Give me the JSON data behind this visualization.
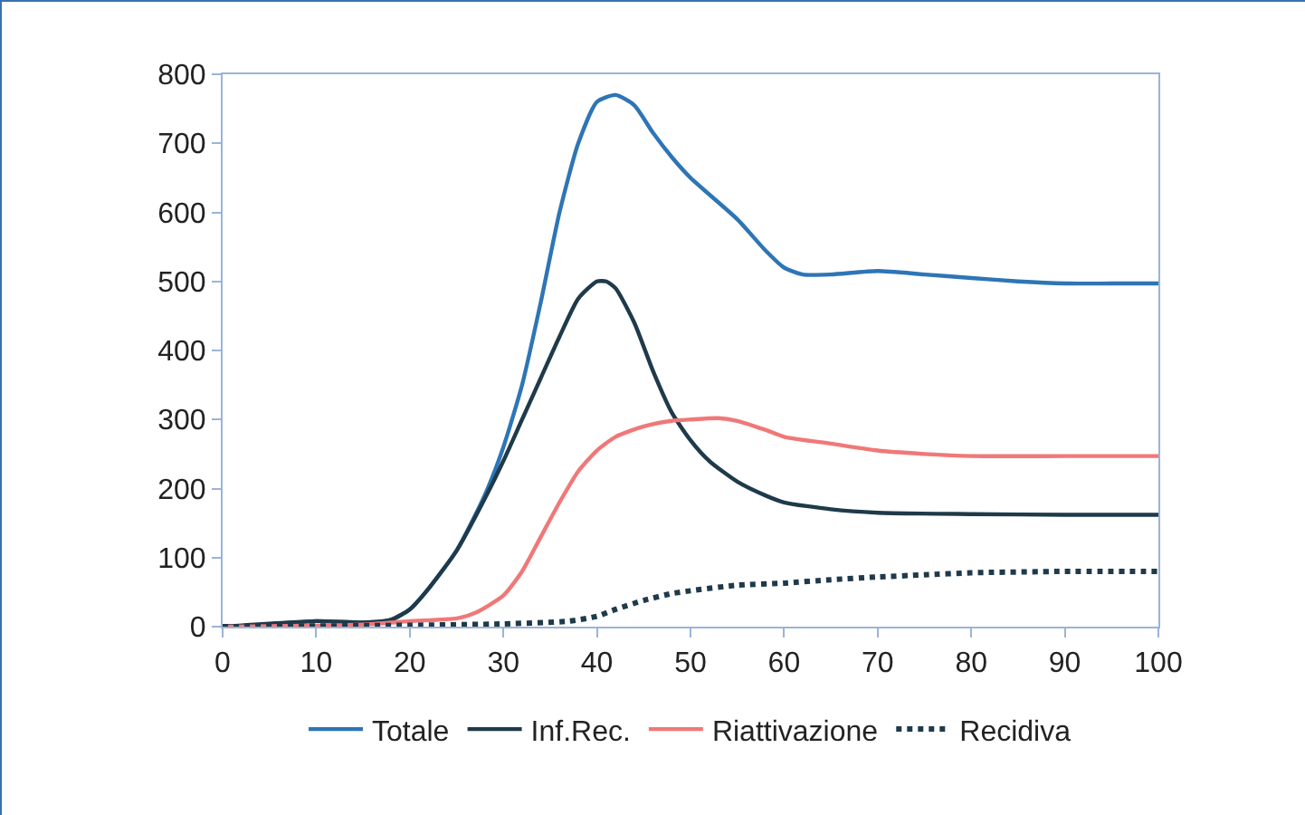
{
  "chart_data": {
    "type": "line",
    "xlim": [
      0,
      100
    ],
    "xticks": [
      0,
      10,
      20,
      30,
      40,
      50,
      60,
      70,
      80,
      90,
      100
    ],
    "ylim": [
      0,
      800
    ],
    "yticks": [
      0,
      100,
      200,
      300,
      400,
      500,
      600,
      700,
      800
    ],
    "grid": false,
    "legend": "bottom",
    "marker": "none",
    "series": [
      {
        "name": "Totale",
        "color": "#2e75b6",
        "line_style": "solid",
        "x": [
          0,
          5,
          10,
          15,
          18,
          20,
          22,
          25,
          28,
          30,
          32,
          34,
          36,
          38,
          40,
          42,
          44,
          46,
          48,
          50,
          55,
          58,
          60,
          62,
          65,
          70,
          75,
          80,
          85,
          90,
          95,
          100
        ],
        "values": [
          0,
          2,
          8,
          6,
          10,
          25,
          55,
          110,
          190,
          260,
          350,
          470,
          600,
          700,
          760,
          770,
          755,
          715,
          680,
          650,
          590,
          545,
          520,
          510,
          510,
          515,
          510,
          505,
          500,
          497,
          497,
          497
        ]
      },
      {
        "name": "Inf.Rec.",
        "color": "#1f3a4a",
        "line_style": "solid",
        "x": [
          0,
          10,
          15,
          18,
          20,
          22,
          25,
          28,
          30,
          32,
          34,
          36,
          38,
          40,
          41,
          42,
          44,
          46,
          48,
          50,
          52,
          55,
          58,
          60,
          65,
          70,
          80,
          90,
          100
        ],
        "values": [
          0,
          8,
          6,
          10,
          25,
          55,
          110,
          185,
          240,
          300,
          360,
          420,
          475,
          500,
          500,
          490,
          440,
          370,
          310,
          270,
          240,
          210,
          190,
          180,
          170,
          165,
          163,
          162,
          162
        ]
      },
      {
        "name": "Riattivazione",
        "color": "#f07878",
        "line_style": "solid",
        "x": [
          0,
          15,
          20,
          25,
          27,
          30,
          32,
          34,
          36,
          38,
          40,
          42,
          45,
          48,
          50,
          53,
          55,
          58,
          60,
          65,
          70,
          75,
          80,
          90,
          100
        ],
        "values": [
          0,
          3,
          8,
          12,
          20,
          45,
          80,
          130,
          180,
          225,
          255,
          275,
          290,
          298,
          300,
          302,
          298,
          285,
          275,
          265,
          255,
          250,
          247,
          247,
          247
        ]
      },
      {
        "name": "Recidiva",
        "color": "#1f3a4a",
        "line_style": "dotted",
        "x": [
          0,
          20,
          30,
          37,
          40,
          42,
          45,
          48,
          50,
          55,
          60,
          65,
          70,
          75,
          80,
          90,
          100
        ],
        "values": [
          0,
          2,
          4,
          8,
          15,
          25,
          38,
          48,
          52,
          60,
          63,
          68,
          72,
          75,
          78,
          80,
          80
        ]
      }
    ]
  }
}
